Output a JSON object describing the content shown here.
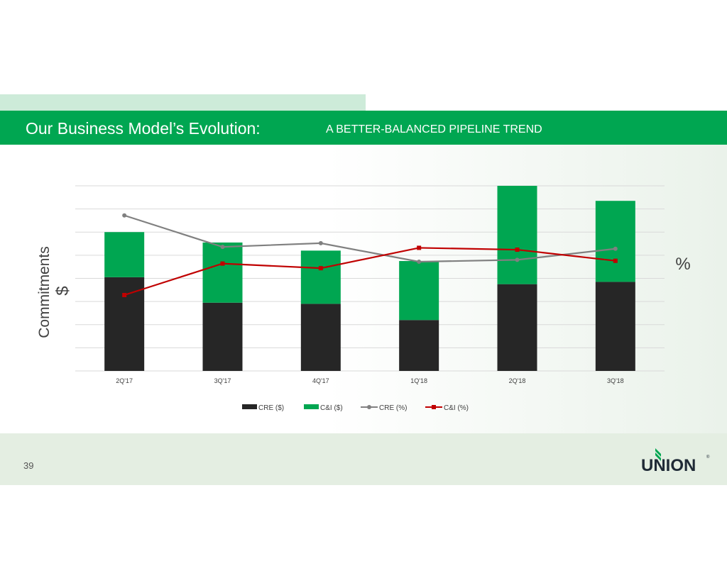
{
  "header": {
    "title": "Our Business Model’s Evolution:",
    "subtitle": "A BETTER-BALANCED PIPELINE TREND"
  },
  "footer": {
    "page_number": "39",
    "logo_text": "UNION"
  },
  "colors": {
    "brand_green": "#00a651",
    "tab_green": "#cdebd9",
    "cre_bar": "#262626",
    "cni_bar": "#00a651",
    "cre_line": "#808080",
    "cni_line": "#c00000"
  },
  "chart_data": {
    "type": "bar",
    "stacked": true,
    "categories": [
      "2Q'17",
      "3Q'17",
      "4Q'17",
      "1Q'18",
      "2Q'18",
      "3Q'18"
    ],
    "left_axis_label": "Commitments\n$",
    "left_axis_symbol": "$",
    "left_axis_word": "Commitments",
    "right_axis_label": "%",
    "ylim": [
      0,
      8
    ],
    "y2lim": [
      0,
      100
    ],
    "grid": true,
    "legend_position": "bottom",
    "series": [
      {
        "name": "CRE ($)",
        "kind": "bar",
        "axis": "left",
        "values": [
          4.05,
          2.95,
          2.9,
          2.2,
          3.75,
          3.85
        ]
      },
      {
        "name": "C&I ($)",
        "kind": "bar",
        "axis": "left",
        "values": [
          1.95,
          2.6,
          2.3,
          2.55,
          4.25,
          3.5
        ]
      },
      {
        "name": "CRE (%)",
        "kind": "line",
        "axis": "right",
        "marker": "circle",
        "values": [
          84,
          67,
          69,
          59,
          60,
          66
        ]
      },
      {
        "name": "C&I (%)",
        "kind": "line",
        "axis": "right",
        "marker": "square",
        "values": [
          41,
          58,
          55.5,
          66.5,
          65.5,
          59.5
        ]
      }
    ]
  }
}
